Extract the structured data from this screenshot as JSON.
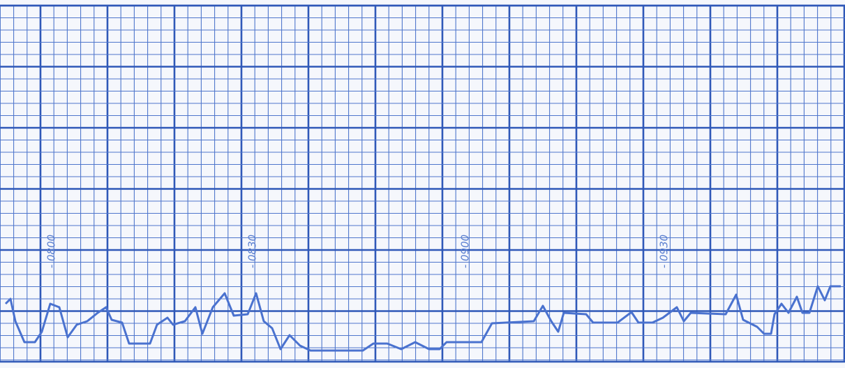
{
  "annotations": [
    "- 0800",
    "- 0830",
    "- 0900",
    "- 0930"
  ]
}
